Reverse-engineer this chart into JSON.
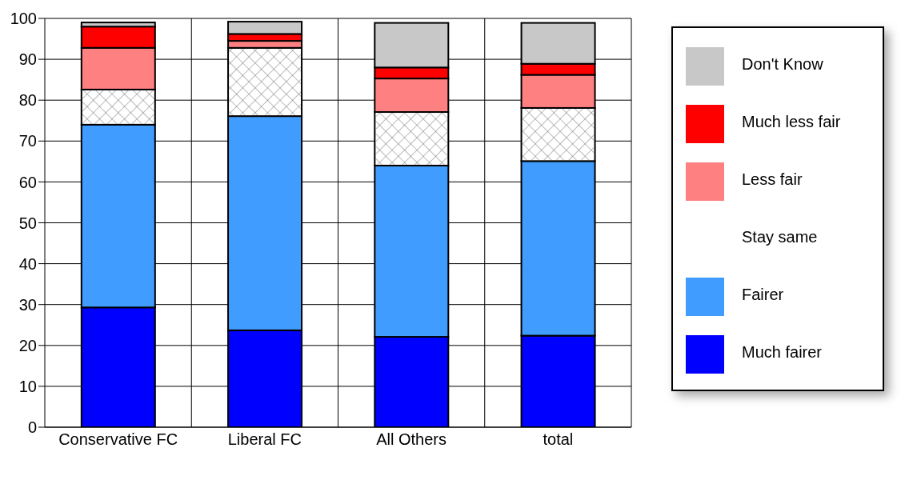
{
  "chart_data": {
    "type": "bar",
    "stacked": true,
    "categories": [
      "Conservative FC",
      "Liberal FC",
      "All Others",
      "total"
    ],
    "series": [
      {
        "name": "Much fairer",
        "color": "#0000ff",
        "values": [
          29.3,
          23.7,
          22.1,
          22.4
        ]
      },
      {
        "name": "Fairer",
        "color": "#409cff",
        "values": [
          44.7,
          52.4,
          41.9,
          42.7
        ]
      },
      {
        "name": "Stay same",
        "color": "#ffffff",
        "values": [
          8.6,
          16.7,
          13.1,
          13.0
        ]
      },
      {
        "name": "Less fair",
        "color": "#ff8080",
        "values": [
          10.2,
          1.7,
          8.2,
          8.1
        ]
      },
      {
        "name": "Much less fair",
        "color": "#ff0000",
        "values": [
          5.2,
          1.7,
          2.7,
          2.7
        ]
      },
      {
        "name": "Don't Know",
        "color": "#c8c8c8",
        "values": [
          1.0,
          3.0,
          10.9,
          10.0
        ]
      }
    ],
    "ylim": [
      0,
      100
    ],
    "yticks": [
      0,
      10,
      20,
      30,
      40,
      50,
      60,
      70,
      80,
      90,
      100
    ],
    "grid": true,
    "legend": "right"
  }
}
